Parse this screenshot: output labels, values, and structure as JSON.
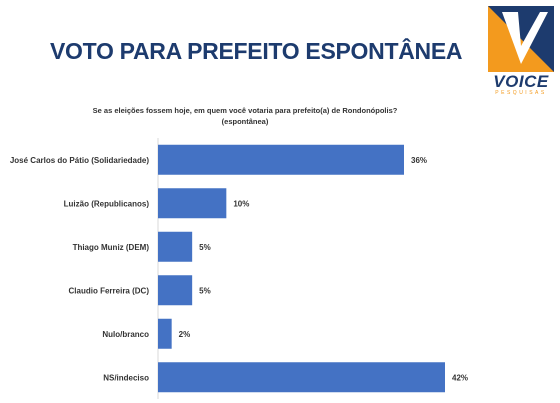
{
  "header": {
    "title": "VOTO PARA PREFEITO ESPONTÂNEA",
    "logo_text": "VOICE",
    "logo_subtext": "PESQUISAS"
  },
  "colors": {
    "bar": "#4472c4",
    "title": "#1d3b6e",
    "logo_orange": "#f39a1e",
    "logo_blue": "#1d3b6e"
  },
  "chart_data": {
    "type": "bar",
    "orientation": "horizontal",
    "title": "Se as eleições fossem hoje, em quem você votaria para prefeito(a) de Rondonópolis?",
    "subtitle": "(espontânea)",
    "categories": [
      "José Carlos do Pátio (Solidariedade)",
      "Luizão (Republicanos)",
      "Thiago Muniz (DEM)",
      "Claudio Ferreira (DC)",
      "Nulo/branco",
      "NS/indeciso"
    ],
    "values": [
      36,
      10,
      5,
      5,
      2,
      42
    ],
    "value_labels": [
      "36%",
      "10%",
      "5%",
      "5%",
      "2%",
      "42%"
    ],
    "xlim": [
      0,
      42
    ],
    "grid": false,
    "legend": "none"
  }
}
